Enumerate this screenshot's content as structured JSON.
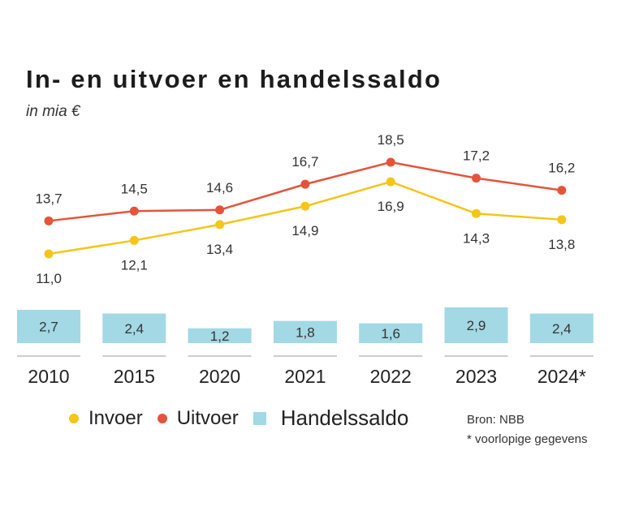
{
  "chart_data": {
    "type": "line",
    "title": "In- en uitvoer en handelssaldo",
    "subtitle": "in mia €",
    "categories": [
      "2010",
      "2015",
      "2020",
      "2021",
      "2022",
      "2023",
      "2024*"
    ],
    "series": [
      {
        "name": "Invoer",
        "type": "line",
        "color": "#f5c518",
        "values": [
          11.0,
          12.1,
          13.4,
          14.9,
          16.9,
          14.3,
          13.8
        ],
        "labels": [
          "11,0",
          "12,1",
          "13,4",
          "14,9",
          "16,9",
          "14,3",
          "13,8"
        ]
      },
      {
        "name": "Uitvoer",
        "type": "line",
        "color": "#e4543a",
        "values": [
          13.7,
          14.5,
          14.6,
          16.7,
          18.5,
          17.2,
          16.2
        ],
        "labels": [
          "13,7",
          "14,5",
          "14,6",
          "16,7",
          "18,5",
          "17,2",
          "16,2"
        ]
      },
      {
        "name": "Handelssaldo",
        "type": "bar",
        "color": "#a3d8e5",
        "values": [
          2.7,
          2.4,
          1.2,
          1.8,
          1.6,
          2.9,
          2.4
        ],
        "labels": [
          "2,7",
          "2,4",
          "1,2",
          "1,8",
          "1,6",
          "2,9",
          "2,4"
        ]
      }
    ],
    "ylim": [
      10,
      19
    ],
    "grid": false,
    "legend_position": "bottom"
  },
  "source": {
    "line1": "Bron: NBB",
    "line2": "* voorlopige gegevens"
  },
  "colors": {
    "invoer": "#f5c518",
    "uitvoer": "#e4543a",
    "handelssaldo": "#a3d8e5",
    "baseline": "#999999"
  }
}
